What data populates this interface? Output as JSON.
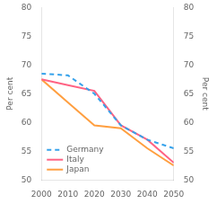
{
  "chart_data": {
    "type": "line",
    "x": [
      2000,
      2010,
      2020,
      2030,
      2040,
      2050
    ],
    "series": [
      {
        "name": "Germany",
        "values": [
          68.5,
          68.2,
          65.0,
          59.5,
          57.0,
          55.5
        ],
        "line_style": "dashed"
      },
      {
        "name": "Italy",
        "values": [
          67.5,
          66.5,
          65.5,
          59.5,
          57.0,
          53.0
        ],
        "line_style": "solid"
      },
      {
        "name": "Japan",
        "values": [
          67.5,
          63.5,
          59.5,
          59.0,
          55.5,
          52.5
        ],
        "line_style": "solid"
      }
    ],
    "xlim": [
      2000,
      2050
    ],
    "xticks": [
      2000,
      2010,
      2020,
      2030,
      2040,
      2050
    ],
    "ylim": [
      50,
      80
    ],
    "yticks": [
      50,
      55,
      60,
      65,
      70,
      75,
      80
    ],
    "y2lim": [
      50,
      80
    ],
    "y2ticks": [
      50,
      55,
      60,
      65,
      70,
      75,
      80
    ],
    "y_label": "Per cent",
    "y2_label": "Per cent",
    "grid": false,
    "legend": "lower left"
  }
}
